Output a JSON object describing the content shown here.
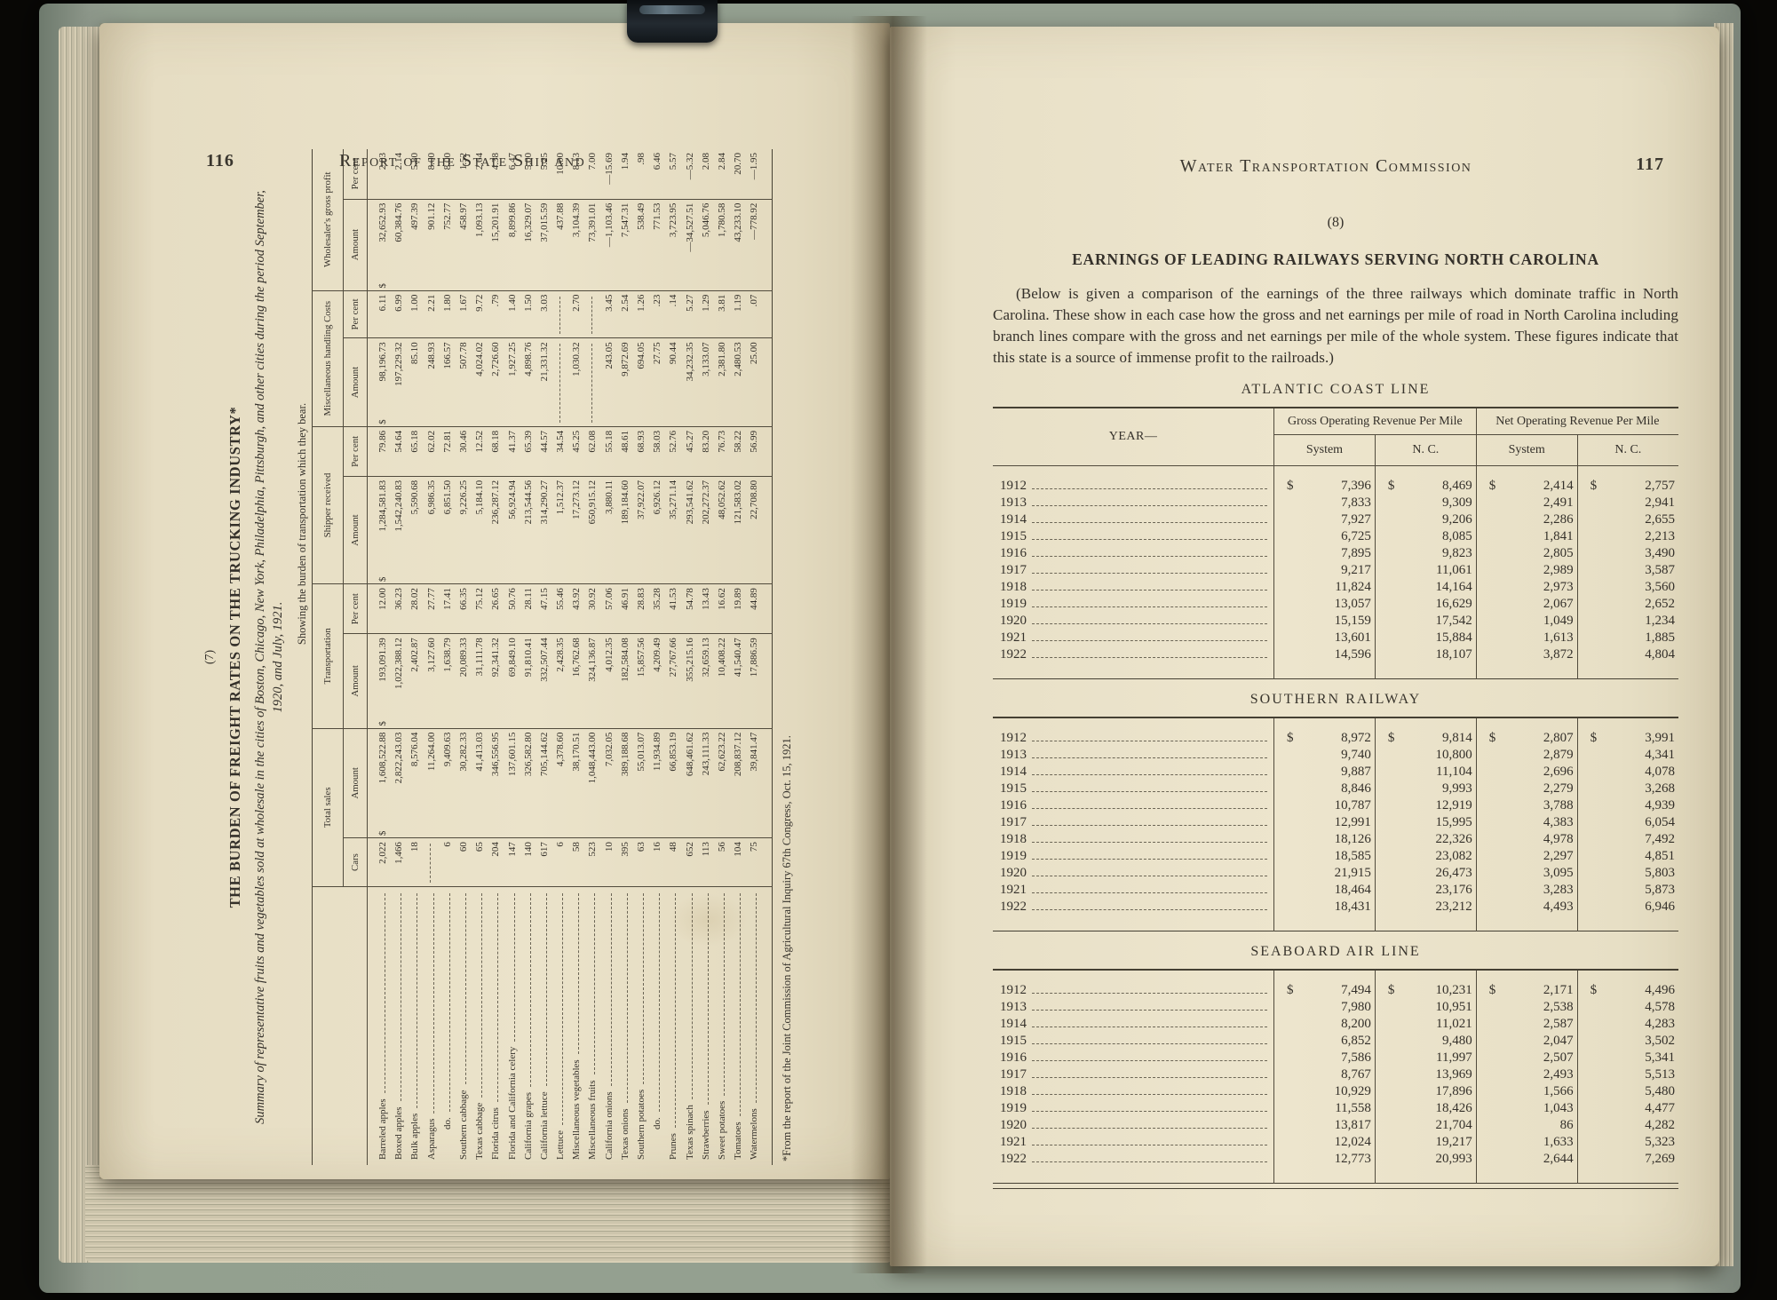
{
  "left_page": {
    "page_number": "116",
    "running_header": "Report of the State Ship and",
    "figure_number": "(7)",
    "trucking": {
      "title": "THE BURDEN OF FREIGHT RATES ON THE TRUCKING INDUSTRY*",
      "subtitle": "Summary of representative fruits and vegetables sold at wholesale in the cities of Boston, Chicago, New York, Philadelphia, Pittsburgh, and other cities during the period September, 1920, and July, 1921.",
      "caption": "Showing the burden of transportation which they bear.",
      "column_groups": [
        "Total sales",
        "Transportation",
        "Shipper received",
        "Miscellaneous handling Costs",
        "Wholesaler's gross profit"
      ],
      "sub_headers": [
        "Cars",
        "Amount",
        "Amount",
        "Per cent",
        "Amount",
        "Per cent",
        "Amount",
        "Per cent",
        "Amount",
        "Per cent"
      ],
      "rows": [
        [
          "Barreled apples",
          "2,022",
          "$1,608,522.88",
          "$ 193,091.39",
          "12.00",
          "$1,284,581.83",
          "79.86",
          "$ 98,196.73",
          "6.11",
          "$ 32,652.93",
          "2.03"
        ],
        [
          "Boxed apples",
          "1,466",
          "2,822,243.03",
          "1,022,388.12",
          "36.23",
          "1,542,240.83",
          "54.64",
          "197,229.32",
          "6.99",
          "60,384.76",
          "2.14"
        ],
        [
          "Bulk apples",
          "18",
          "8,576.04",
          "2,402.87",
          "28.02",
          "5,590.68",
          "65.18",
          "85.10",
          "1.00",
          "497.39",
          "5.80"
        ],
        [
          "Asparagus",
          "",
          "11,264.00",
          "3,127.60",
          "27.77",
          "6,986.35",
          "62.02",
          "248.93",
          "2.21",
          "901.12",
          "8.00"
        ],
        [
          "do.",
          "6",
          "9,409.63",
          "1,638.79",
          "17.41",
          "6,851.50",
          "72.81",
          "166.57",
          "1.80",
          "752.77",
          "8.00"
        ],
        [
          "Southern cabbage",
          "60",
          "30,282.33",
          "20,089.33",
          "66.35",
          "9,226.25",
          "30.46",
          "507.78",
          "1.67",
          "458.97",
          "1.52"
        ],
        [
          "Texas cabbage",
          "65",
          "41,413.03",
          "31,111.78",
          "75.12",
          "5,184.10",
          "12.52",
          "4,024.02",
          "9.72",
          "1,093.13",
          "2.64"
        ],
        [
          "Florida citrus",
          "204",
          "346,556.95",
          "92,341.32",
          "26.65",
          "236,287.12",
          "68.18",
          "2,726.60",
          ".79",
          "15,201.91",
          "4.38"
        ],
        [
          "Florida and California celery",
          "147",
          "137,601.15",
          "69,849.10",
          "50.76",
          "56,924.94",
          "41.37",
          "1,927.25",
          "1.40",
          "8,899.86",
          "6.47"
        ],
        [
          "California grapes",
          "140",
          "326,582.80",
          "91,810.41",
          "28.11",
          "213,544.56",
          "65.39",
          "4,898.76",
          "1.50",
          "16,329.07",
          "5.00"
        ],
        [
          "California lettuce",
          "617",
          "705,144.62",
          "332,507.44",
          "47.15",
          "314,290.27",
          "44.57",
          "21,331.32",
          "3.03",
          "37,015.59",
          "5.25"
        ],
        [
          "Lettuce",
          "6",
          "4,378.60",
          "2,428.35",
          "55.46",
          "1,512.37",
          "34.54",
          "",
          "",
          "437.88",
          "10.00"
        ],
        [
          "Miscellaneous vegetables",
          "58",
          "38,170.51",
          "16,762.68",
          "43.92",
          "17,273.12",
          "45.25",
          "1,030.32",
          "2.70",
          "3,104.39",
          "8.13"
        ],
        [
          "Miscellaneous fruits",
          "523",
          "1,048,443.00",
          "324,136.87",
          "30.92",
          "650,915.12",
          "62.08",
          "",
          "",
          "73,391.01",
          "7.00"
        ],
        [
          "California onions",
          "10",
          "7,032.05",
          "4,012.35",
          "57.06",
          "3,880.11",
          "55.18",
          "243.05",
          "3.45",
          "—1,103.46",
          "—15.69"
        ],
        [
          "Texas onions",
          "395",
          "389,188.68",
          "182,584.08",
          "46.91",
          "189,184.60",
          "48.61",
          "9,872.69",
          "2.54",
          "7,547.31",
          "1.94"
        ],
        [
          "Southern potatoes",
          "63",
          "55,013.07",
          "15,857.56",
          "28.83",
          "37,922.07",
          "68.93",
          "694.05",
          "1.26",
          "538.49",
          ".98"
        ],
        [
          "do.",
          "16",
          "11,934.89",
          "4,209.49",
          "35.28",
          "6,926.12",
          "58.03",
          "27.75",
          ".23",
          "771.53",
          "6.46"
        ],
        [
          "Prunes",
          "48",
          "66,853.19",
          "27,767.66",
          "41.53",
          "35,271.14",
          "52.76",
          "90.44",
          ".14",
          "3,723.95",
          "5.57"
        ],
        [
          "Texas spinach",
          "652",
          "648,461.62",
          "355,215.16",
          "54.78",
          "293,541.62",
          "45.27",
          "34,232.35",
          "5.27",
          "—34,527.51",
          "—5.32"
        ],
        [
          "Strawberries",
          "113",
          "243,111.33",
          "32,659.13",
          "13.43",
          "202,272.37",
          "83.20",
          "3,133.07",
          "1.29",
          "5,046.76",
          "2.08"
        ],
        [
          "Sweet potatoes",
          "56",
          "62,623.22",
          "10,408.22",
          "16.62",
          "48,052.62",
          "76.73",
          "2,381.80",
          "3.81",
          "1,780.58",
          "2.84"
        ],
        [
          "Tomatoes",
          "104",
          "208,837.12",
          "41,540.47",
          "19.89",
          "121,583.02",
          "58.22",
          "2,480.53",
          "1.19",
          "43,233.10",
          "20.70"
        ],
        [
          "Watermelons",
          "75",
          "39,841.47",
          "17,886.59",
          "44.89",
          "22,708.80",
          "56.99",
          "25.00",
          ".07",
          "—778.92",
          "—1.95"
        ]
      ],
      "footnote": "*From the report of the Joint Commission of Agricultural Inquiry 67th Congress, Oct. 15, 1921."
    }
  },
  "right_page": {
    "page_number": "117",
    "running_header": "Water Transportation Commission",
    "section_number": "(8)",
    "heading": "EARNINGS OF LEADING RAILWAYS SERVING NORTH CAROLINA",
    "intro": "(Below is given a comparison of the earnings of the three railways which dominate traffic in North Carolina.  These show in each case how the gross and net earnings per mile of road in North Carolina including branch lines compare with the gross and net earnings per mile of the whole system.  These figures indicate that this state is a source of immense profit to the railroads.)",
    "table_headers": {
      "year": "YEAR—",
      "gross": "Gross Operating Revenue Per Mile",
      "net": "Net Operating Revenue Per Mile",
      "system": "System",
      "nc": "N. C."
    },
    "railways": [
      {
        "name": "ATLANTIC COAST LINE",
        "rows": [
          [
            "1912",
            "$ 7,396",
            "$ 8,469",
            "$ 2,414",
            "$ 2,757"
          ],
          [
            "1913",
            "7,833",
            "9,309",
            "2,491",
            "2,941"
          ],
          [
            "1914",
            "7,927",
            "9,206",
            "2,286",
            "2,655"
          ],
          [
            "1915",
            "6,725",
            "8,085",
            "1,841",
            "2,213"
          ],
          [
            "1916",
            "7,895",
            "9,823",
            "2,805",
            "3,490"
          ],
          [
            "1917",
            "9,217",
            "11,061",
            "2,989",
            "3,587"
          ],
          [
            "1918",
            "11,824",
            "14,164",
            "2,973",
            "3,560"
          ],
          [
            "1919",
            "13,057",
            "16,629",
            "2,067",
            "2,652"
          ],
          [
            "1920",
            "15,159",
            "17,542",
            "1,049",
            "1,234"
          ],
          [
            "1921",
            "13,601",
            "15,884",
            "1,613",
            "1,885"
          ],
          [
            "1922",
            "14,596",
            "18,107",
            "3,872",
            "4,804"
          ]
        ]
      },
      {
        "name": "SOUTHERN RAILWAY",
        "rows": [
          [
            "1912",
            "$ 8,972",
            "$ 9,814",
            "$ 2,807",
            "$ 3,991"
          ],
          [
            "1913",
            "9,740",
            "10,800",
            "2,879",
            "4,341"
          ],
          [
            "1914",
            "9,887",
            "11,104",
            "2,696",
            "4,078"
          ],
          [
            "1915",
            "8,846",
            "9,993",
            "2,279",
            "3,268"
          ],
          [
            "1916",
            "10,787",
            "12,919",
            "3,788",
            "4,939"
          ],
          [
            "1917",
            "12,991",
            "15,995",
            "4,383",
            "6,054"
          ],
          [
            "1918",
            "18,126",
            "22,326",
            "4,978",
            "7,492"
          ],
          [
            "1919",
            "18,585",
            "23,082",
            "2,297",
            "4,851"
          ],
          [
            "1920",
            "21,915",
            "26,473",
            "3,095",
            "5,803"
          ],
          [
            "1921",
            "18,464",
            "23,176",
            "3,283",
            "5,873"
          ],
          [
            "1922",
            "18,431",
            "23,212",
            "4,493",
            "6,946"
          ]
        ]
      },
      {
        "name": "SEABOARD AIR LINE",
        "rows": [
          [
            "1912",
            "$ 7,494",
            "$ 10,231",
            "$ 2,171",
            "$ 4,496"
          ],
          [
            "1913",
            "7,980",
            "10,951",
            "2,538",
            "4,578"
          ],
          [
            "1914",
            "8,200",
            "11,021",
            "2,587",
            "4,283"
          ],
          [
            "1915",
            "6,852",
            "9,480",
            "2,047",
            "3,502"
          ],
          [
            "1916",
            "7,586",
            "11,997",
            "2,507",
            "5,341"
          ],
          [
            "1917",
            "8,767",
            "13,969",
            "2,493",
            "5,513"
          ],
          [
            "1918",
            "10,929",
            "17,896",
            "1,566",
            "5,480"
          ],
          [
            "1919",
            "11,558",
            "18,426",
            "1,043",
            "4,477"
          ],
          [
            "1920",
            "13,817",
            "21,704",
            "86",
            "4,282"
          ],
          [
            "1921",
            "12,024",
            "19,217",
            "1,633",
            "5,323"
          ],
          [
            "1922",
            "12,773",
            "20,993",
            "2,644",
            "7,269"
          ]
        ]
      }
    ]
  }
}
